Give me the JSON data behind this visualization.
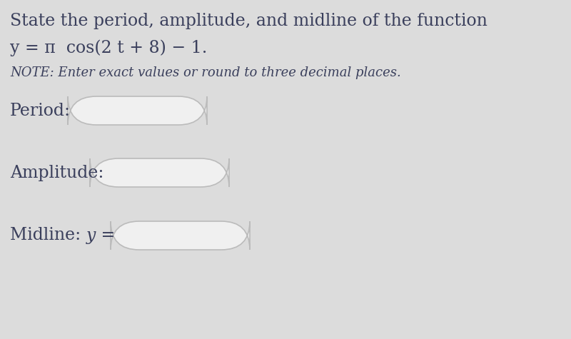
{
  "background_color": "#dcdcdc",
  "title_line1": "State the period, amplitude, and midline of the function",
  "title_line2": "y = π  cos(2 t + 8) − 1.",
  "note_line": "NOTE: Enter exact values or round to three decimal places.",
  "label_period": "Period:",
  "label_amplitude": "Amplitude:",
  "label_midline": "Midline: ",
  "label_midline_y": "y",
  "label_midline_eq": " =",
  "box_color": "#f0f0f0",
  "box_edge_color": "#bbbbbb",
  "text_color": "#3a3f5c",
  "note_color": "#3a3f5c",
  "title_fontsize": 17,
  "equation_fontsize": 17,
  "note_fontsize": 13,
  "label_fontsize": 17,
  "fig_width": 8.0,
  "fig_height": 4.75
}
